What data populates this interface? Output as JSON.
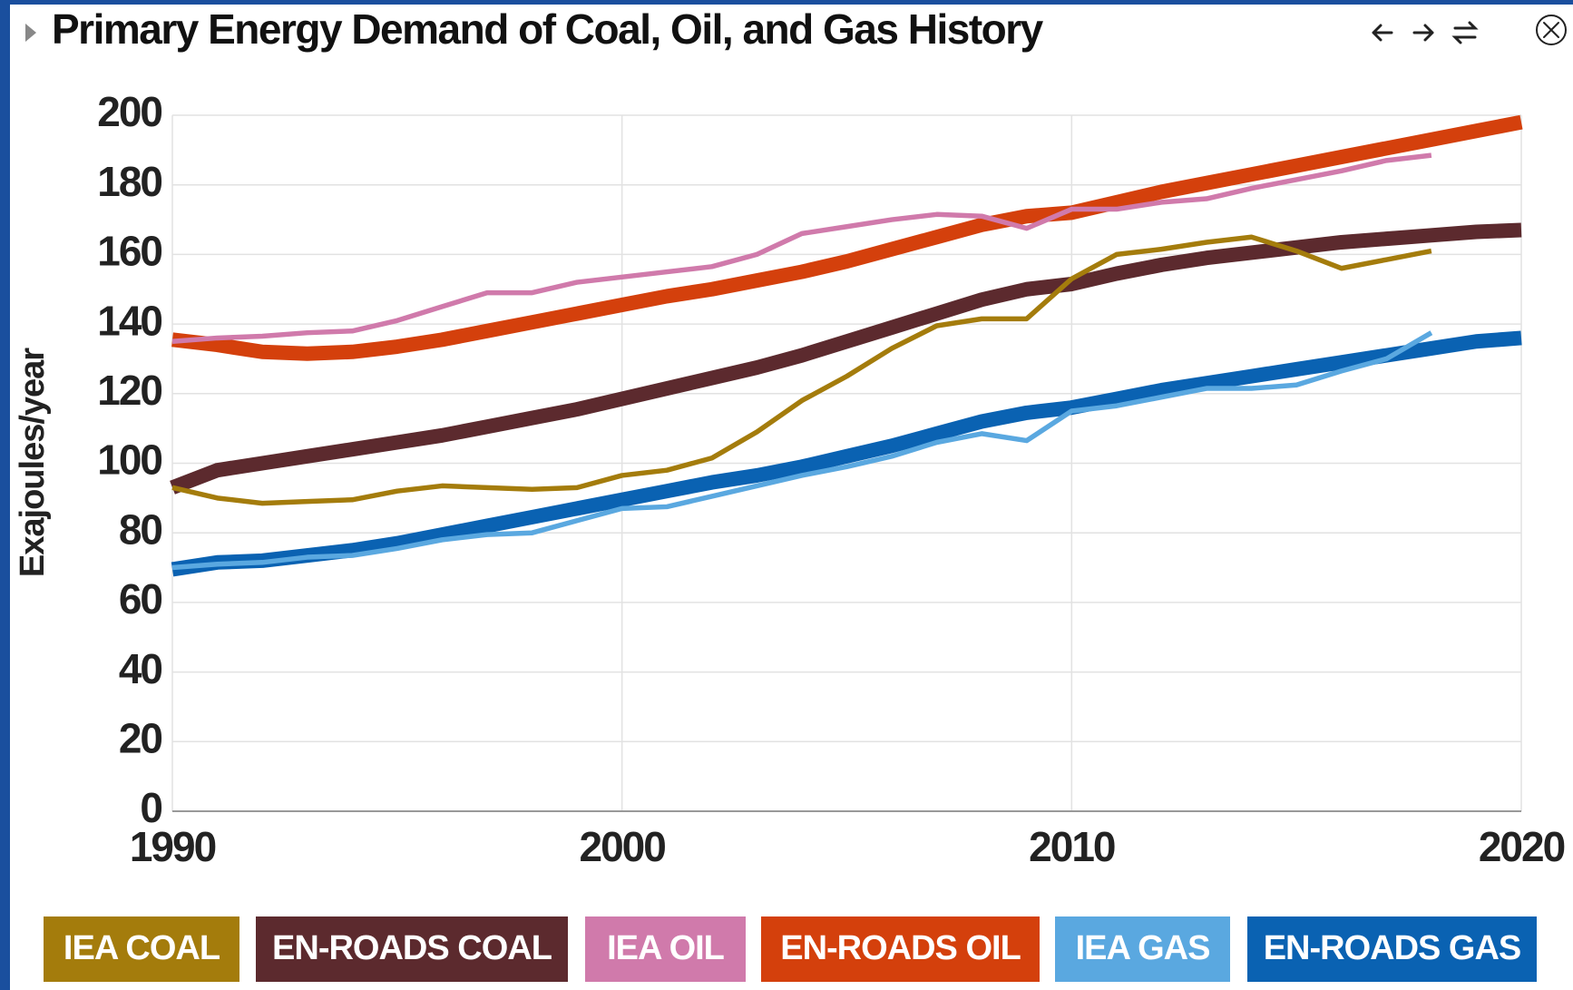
{
  "chart_data": {
    "type": "line",
    "title": "Primary Energy Demand of Coal, Oil, and Gas History",
    "ylabel": "Exajoules/year",
    "x": [
      1990,
      1991,
      1992,
      1993,
      1994,
      1995,
      1996,
      1997,
      1998,
      1999,
      2000,
      2001,
      2002,
      2003,
      2004,
      2005,
      2006,
      2007,
      2008,
      2009,
      2010,
      2011,
      2012,
      2013,
      2014,
      2015,
      2016,
      2017,
      2018,
      2019,
      2020
    ],
    "xlim": [
      1990,
      2020
    ],
    "xticks": [
      1990,
      2000,
      2010,
      2020
    ],
    "ylim": [
      0,
      200
    ],
    "yticks": [
      0,
      20,
      40,
      60,
      80,
      100,
      120,
      140,
      160,
      180,
      200
    ],
    "grid": true,
    "series": [
      {
        "name": "IEA COAL",
        "color": "#a47c0c",
        "values": [
          93,
          90,
          88.5,
          89,
          89.5,
          92,
          93.5,
          93,
          92.5,
          93,
          96.5,
          98,
          101.5,
          109,
          118,
          125,
          133,
          139.5,
          141.5,
          141.5,
          153,
          160,
          161.5,
          163.5,
          165,
          161,
          156,
          158.5,
          161,
          null,
          null
        ]
      },
      {
        "name": "EN-ROADS COAL",
        "color": "#5c2a2e",
        "values": [
          93,
          98,
          100,
          102,
          104,
          106,
          108,
          110.5,
          113,
          115.5,
          118.5,
          121.5,
          124.5,
          127.5,
          131,
          135,
          139,
          143,
          147,
          150,
          151.5,
          154.5,
          157,
          159,
          160.5,
          162,
          163.5,
          164.5,
          165.5,
          166.5,
          167
        ]
      },
      {
        "name": "IEA OIL",
        "color": "#d07aab",
        "values": [
          135,
          136,
          136.5,
          137.5,
          138,
          141,
          145,
          149,
          149,
          152,
          153.5,
          155,
          156.5,
          160,
          166,
          168,
          170,
          171.5,
          171,
          167.5,
          173,
          173,
          175,
          176,
          179,
          181.5,
          184,
          187,
          188.5,
          null,
          null
        ]
      },
      {
        "name": "EN-ROADS OIL",
        "color": "#d4400c",
        "values": [
          135.5,
          134,
          132,
          131.5,
          132,
          133.5,
          135.5,
          138,
          140.5,
          143,
          145.5,
          148,
          150,
          152.5,
          155,
          158,
          161.5,
          165,
          168.5,
          171,
          172,
          175,
          178,
          180.5,
          183,
          185.5,
          188,
          190.5,
          193,
          195.5,
          198
        ]
      },
      {
        "name": "IEA GAS",
        "color": "#5aa8e0",
        "values": [
          70,
          71,
          71.5,
          73,
          73.5,
          75.5,
          78,
          79.5,
          80,
          83.5,
          87,
          87.5,
          90.5,
          93.5,
          96.5,
          99,
          102,
          106,
          108.5,
          106.5,
          115,
          116.5,
          119,
          121.5,
          121.5,
          122.5,
          126.5,
          130,
          137.5,
          null,
          null
        ]
      },
      {
        "name": "EN-ROADS GAS",
        "color": "#0a62b2",
        "values": [
          69.5,
          71.5,
          72,
          73.5,
          75,
          77,
          79.5,
          82,
          84.5,
          87,
          89.5,
          92,
          94.5,
          96.5,
          99,
          102,
          105,
          108.5,
          112,
          114.5,
          116,
          118.5,
          121,
          123,
          125,
          127,
          129,
          131,
          133,
          135,
          136
        ]
      }
    ]
  }
}
